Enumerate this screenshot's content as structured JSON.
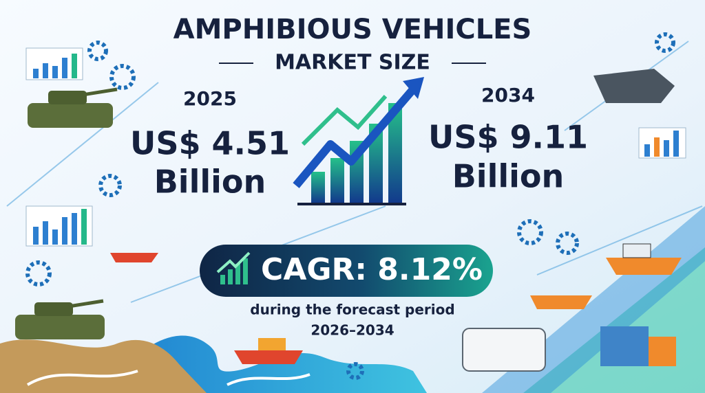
{
  "header": {
    "title": "AMPHIBIOUS VEHICLES",
    "subtitle": "MARKET SIZE"
  },
  "market_start": {
    "year": "2025",
    "value": "US$ 4.51",
    "unit": "Billion"
  },
  "market_end": {
    "year": "2034",
    "value": "US$ 9.11",
    "unit": "Billion"
  },
  "cagr": {
    "label": "CAGR: 8.12%",
    "note": "during the forecast period",
    "period": "2026–2034"
  }
}
